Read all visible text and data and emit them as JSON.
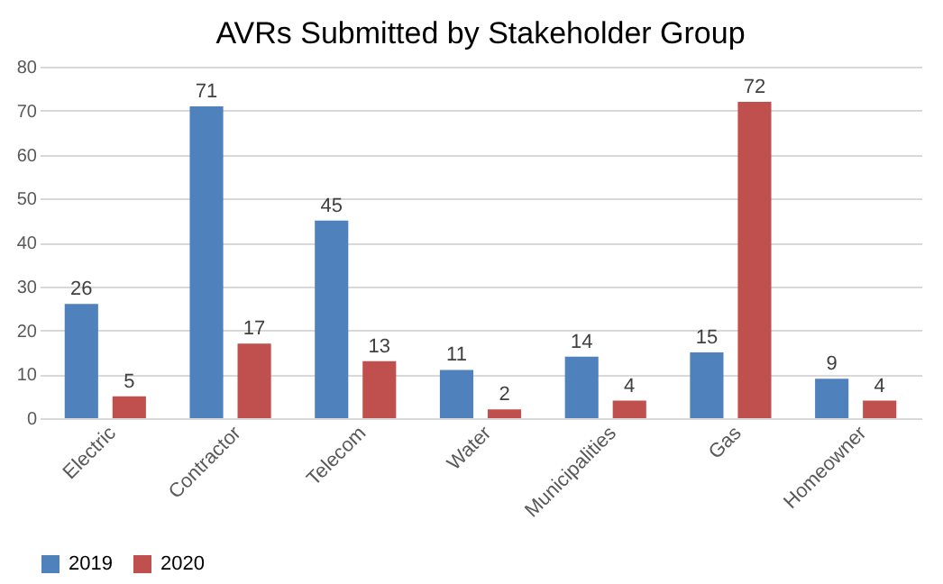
{
  "chart_data": {
    "type": "bar",
    "title": "AVRs Submitted by Stakeholder Group",
    "categories": [
      "Electric",
      "Contractor",
      "Telecom",
      "Water",
      "Municipalities",
      "Gas",
      "Homeowner"
    ],
    "series": [
      {
        "name": "2019",
        "color": "#4f81bd",
        "values": [
          26,
          71,
          45,
          11,
          14,
          15,
          9
        ]
      },
      {
        "name": "2020",
        "color": "#c0504d",
        "values": [
          5,
          17,
          13,
          2,
          4,
          72,
          4
        ]
      }
    ],
    "ylim": [
      0,
      80
    ],
    "yticks": [
      0,
      10,
      20,
      30,
      40,
      50,
      60,
      70,
      80
    ],
    "grid": "y",
    "legend": "bottom",
    "data_labels": true
  }
}
